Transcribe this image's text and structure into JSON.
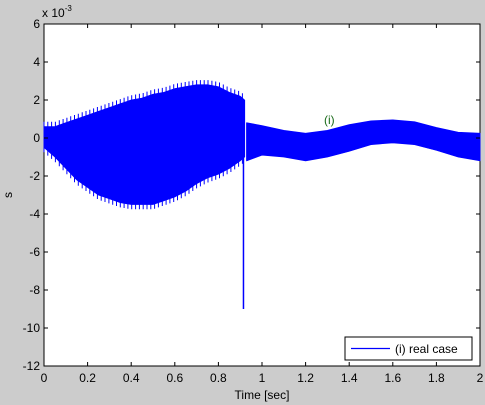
{
  "chart_data": {
    "type": "line",
    "title": "",
    "xlabel": "Time [sec]",
    "ylabel": "s",
    "xlim": [
      0,
      2
    ],
    "ylim": [
      -12,
      6
    ],
    "y_scale_factor_label": "x 10",
    "y_scale_factor_exponent": "-3",
    "xticks": [
      "0",
      "0.2",
      "0.4",
      "0.6",
      "0.8",
      "1",
      "1.2",
      "1.4",
      "1.6",
      "1.8",
      "2"
    ],
    "yticks": [
      "6",
      "4",
      "2",
      "0",
      "-2",
      "-4",
      "-6",
      "-8",
      "-10",
      "-12"
    ],
    "grid": false,
    "legend_position": "bottom-right",
    "annotation": "(i)",
    "series": [
      {
        "name": "(i) real case",
        "color": "#0000ff",
        "envelope_x": [
          0.0,
          0.05,
          0.1,
          0.15,
          0.2,
          0.25,
          0.3,
          0.35,
          0.4,
          0.45,
          0.5,
          0.55,
          0.6,
          0.65,
          0.7,
          0.75,
          0.8,
          0.85,
          0.9,
          0.92
        ],
        "envelope_upper": [
          0.6,
          0.6,
          0.8,
          1.0,
          1.2,
          1.4,
          1.6,
          1.8,
          2.0,
          2.1,
          2.3,
          2.4,
          2.6,
          2.7,
          2.8,
          2.8,
          2.7,
          2.4,
          2.2,
          2.0
        ],
        "envelope_lower": [
          -0.5,
          -1.0,
          -1.6,
          -2.2,
          -2.6,
          -3.0,
          -3.2,
          -3.4,
          -3.5,
          -3.5,
          -3.5,
          -3.3,
          -3.1,
          -2.8,
          -2.4,
          -2.1,
          -1.9,
          -1.6,
          -1.2,
          -1.0
        ],
        "spike": {
          "x": 0.915,
          "min": -9.0
        },
        "after_x": [
          0.93,
          1.0,
          1.1,
          1.2,
          1.3,
          1.4,
          1.5,
          1.6,
          1.7,
          1.8,
          1.9,
          2.0
        ],
        "after_upper": [
          0.8,
          0.65,
          0.4,
          0.25,
          0.4,
          0.7,
          0.9,
          0.95,
          0.85,
          0.55,
          0.3,
          0.25
        ],
        "after_lower": [
          -1.2,
          -0.9,
          -1.0,
          -1.2,
          -1.0,
          -0.7,
          -0.35,
          -0.25,
          -0.35,
          -0.65,
          -1.0,
          -1.2
        ]
      }
    ]
  }
}
